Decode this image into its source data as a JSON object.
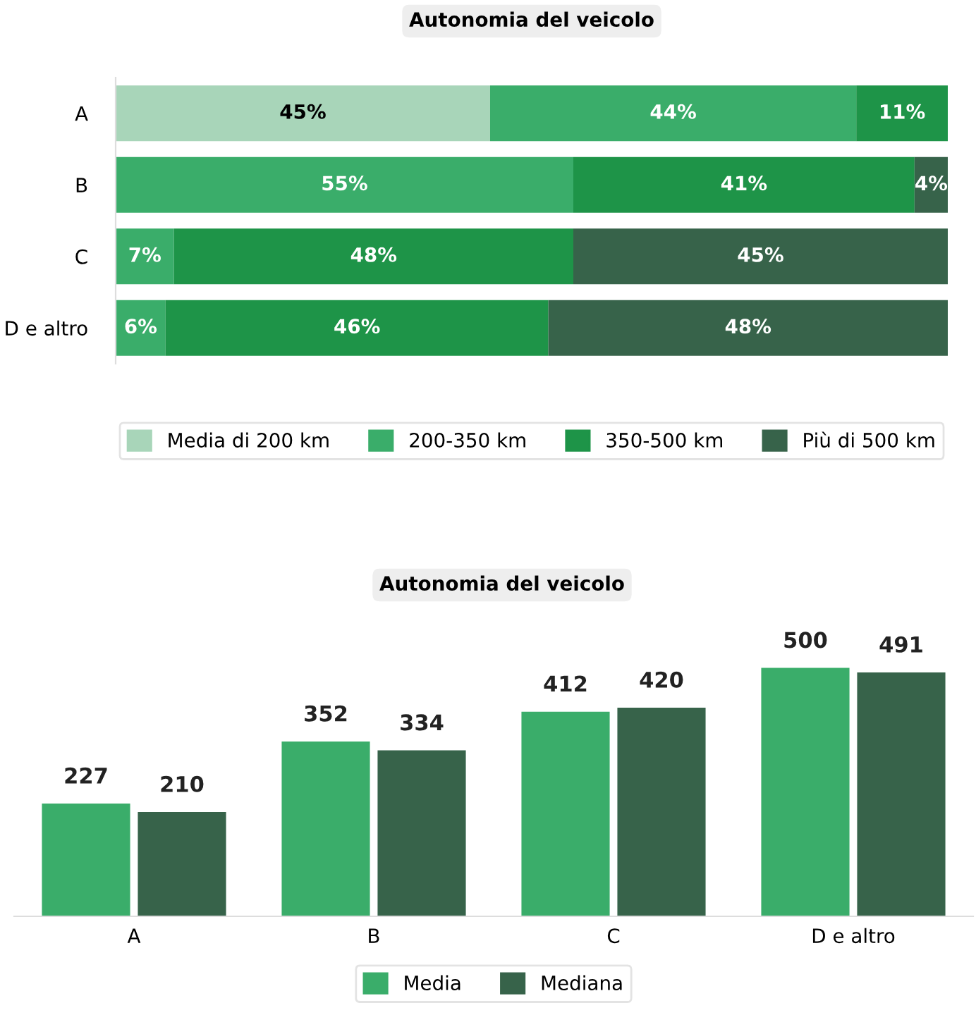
{
  "chart_data": [
    {
      "type": "bar",
      "title": "Autonomia del veicolo",
      "orientation": "horizontal",
      "stacked": true,
      "categories": [
        "A",
        "B",
        "C",
        "D e altro"
      ],
      "xlim": [
        0,
        100
      ],
      "tick_labels": "y",
      "legend": "bottom",
      "series": [
        {
          "name": "Media di 200 km",
          "color": "#a8d5b9",
          "values": [
            45,
            null,
            null,
            null
          ],
          "value_labels": [
            "45%",
            null,
            null,
            null
          ]
        },
        {
          "name": "200-350 km",
          "color": "#3aad6a",
          "values": [
            44,
            55,
            7,
            6
          ],
          "value_labels": [
            "44%",
            "55%",
            "7%",
            "6%"
          ]
        },
        {
          "name": "350-500 km",
          "color": "#1e9448",
          "values": [
            11,
            41,
            48,
            46
          ],
          "value_labels": [
            "11%",
            "41%",
            "48%",
            "46%"
          ]
        },
        {
          "name": "Più di 500 km",
          "color": "#37634a",
          "values": [
            null,
            4,
            45,
            48
          ],
          "value_labels": [
            null,
            "4%",
            "45%",
            "48%"
          ]
        }
      ]
    },
    {
      "type": "bar",
      "title": "Autonomia del veicolo",
      "categories": [
        "A",
        "B",
        "C",
        "D e altro"
      ],
      "tick_labels": "x",
      "legend": "bottom",
      "data_labels": true,
      "series": [
        {
          "name": "Media",
          "color": "#3aad6a",
          "values": [
            227,
            352,
            412,
            500
          ]
        },
        {
          "name": "Mediana",
          "color": "#37634a",
          "values": [
            210,
            334,
            420,
            491
          ]
        }
      ]
    }
  ]
}
